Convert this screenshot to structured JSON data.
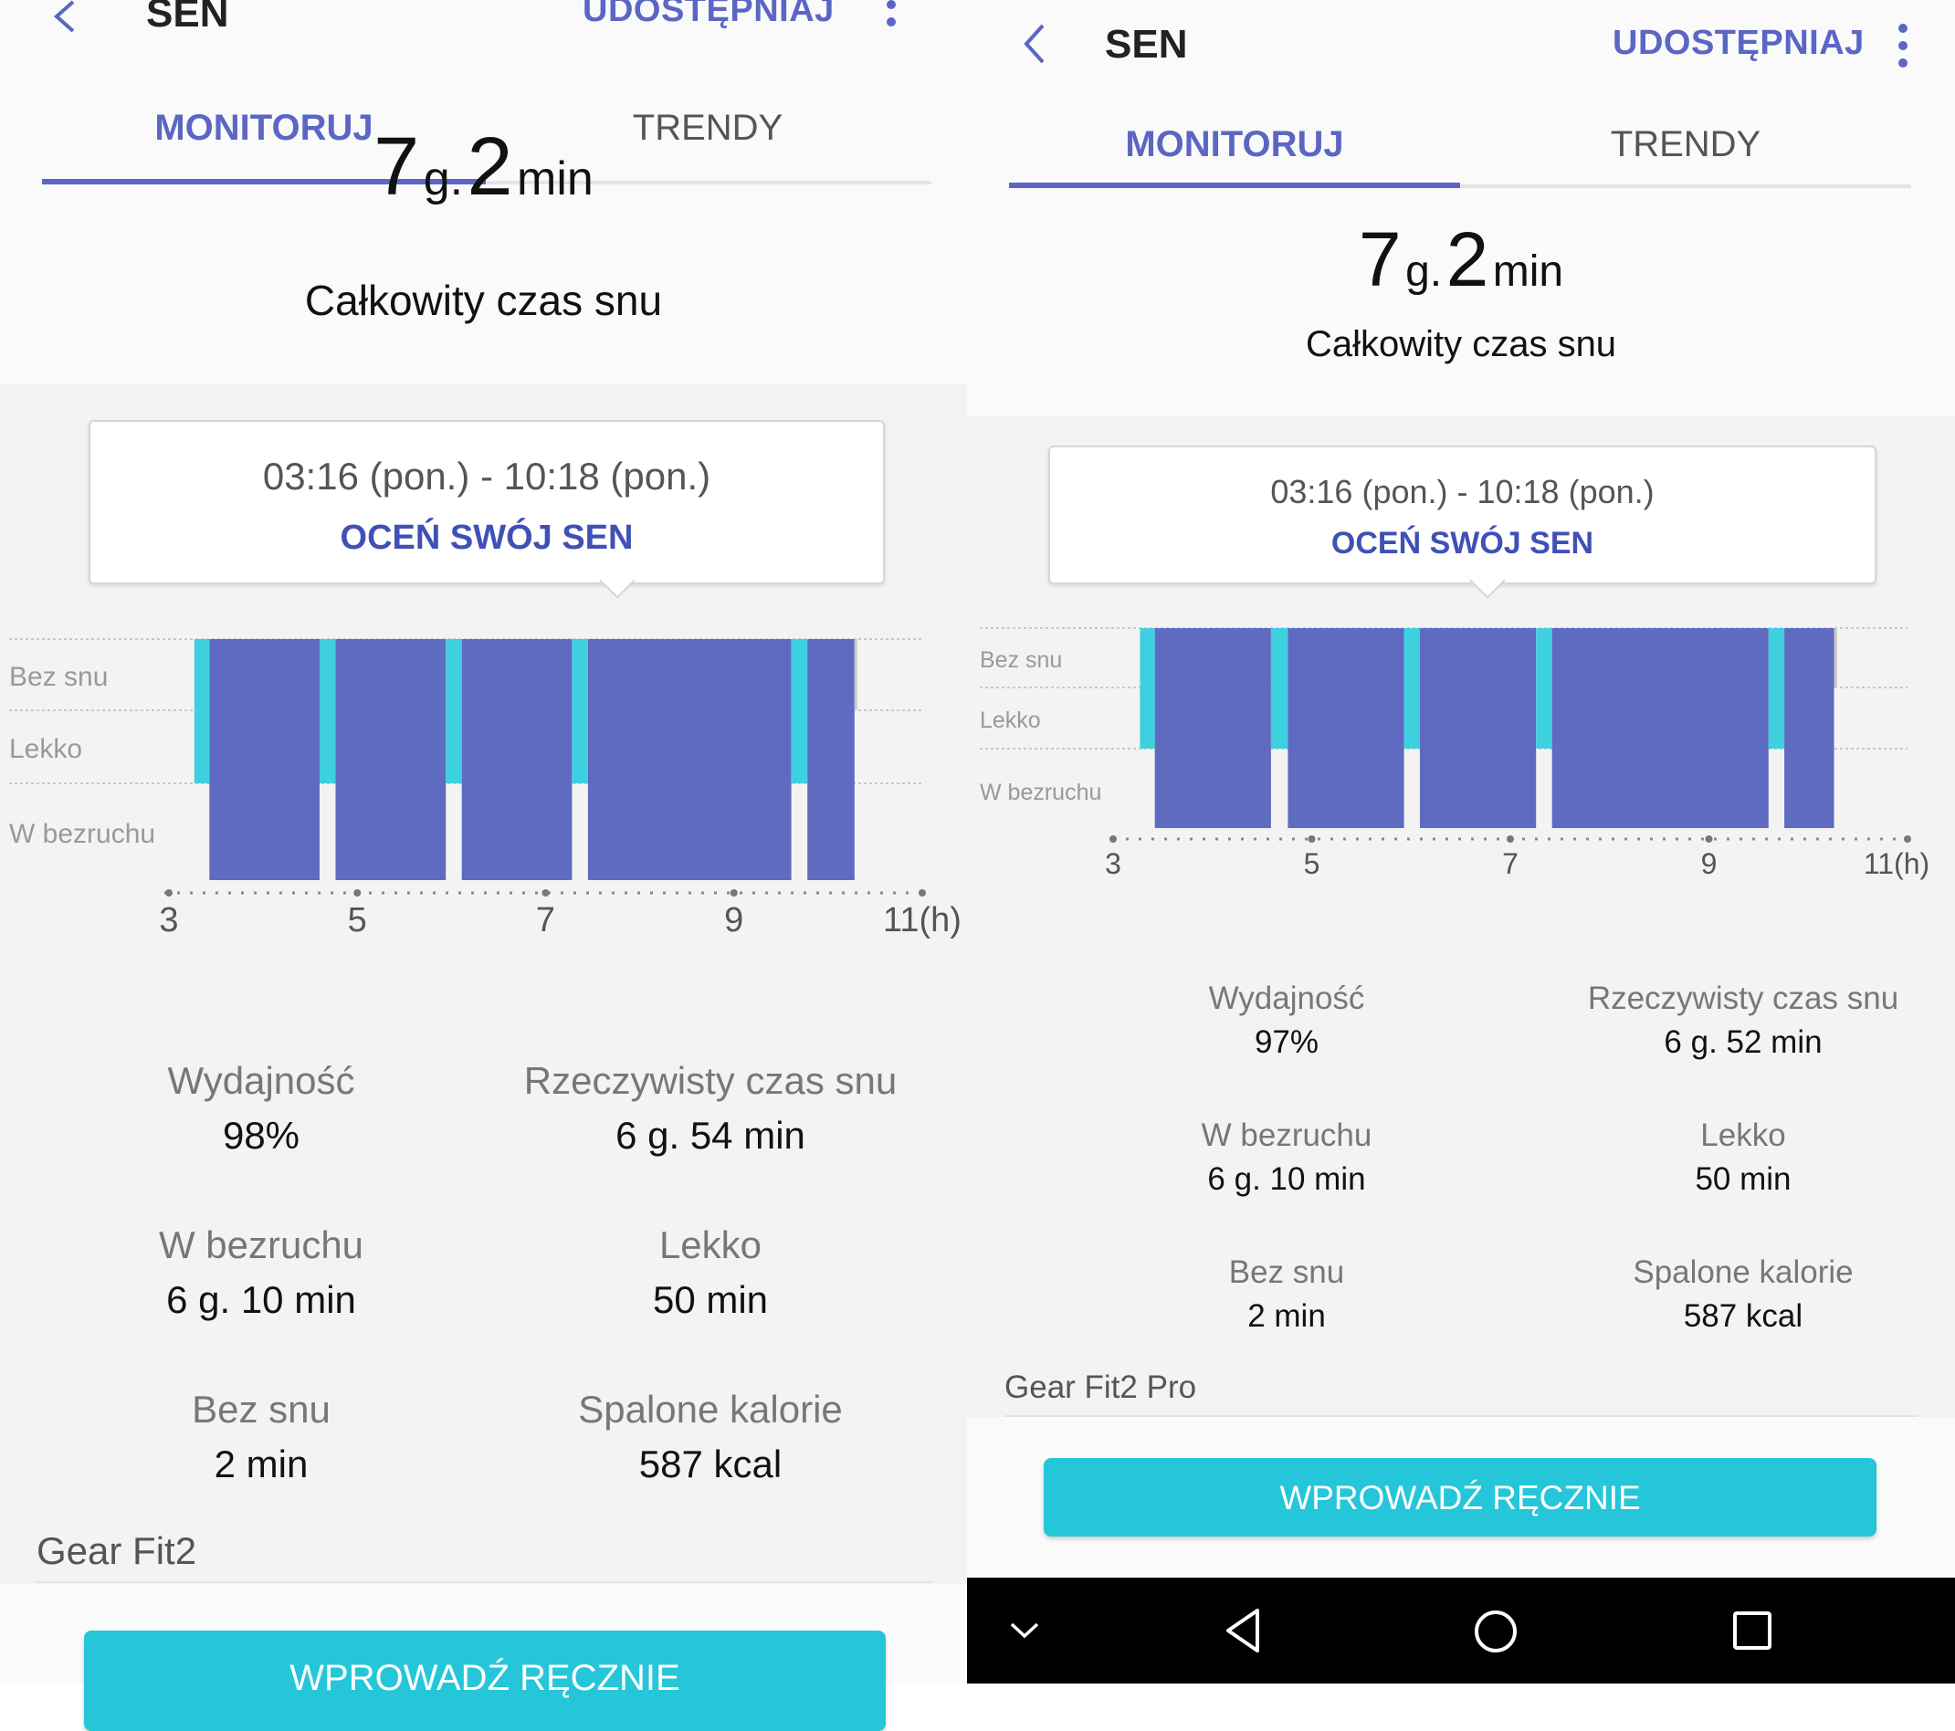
{
  "colors": {
    "accent": "#5b66c4",
    "deep": "#5e6bc1",
    "light": "#3fd0e0",
    "cta": "#26c6da"
  },
  "icons": {
    "back": "chevron-left-icon",
    "more": "more-vert-icon",
    "nav_back": "triangle-back-icon",
    "nav_home": "circle-home-icon",
    "nav_recent": "square-recents-icon",
    "nav_down": "chevron-down-icon"
  },
  "left": {
    "header": {
      "title": "SEN",
      "share": "UDOSTĘPNIAJ"
    },
    "tabs": [
      {
        "label": "MONITORUJ"
      },
      {
        "label": "TRENDY"
      }
    ],
    "summary": {
      "hours": "7",
      "hours_unit": "g.",
      "minutes": "2",
      "minutes_unit": "min",
      "label": "Całkowity czas snu"
    },
    "callout": {
      "range": "03:16 (pon.) - 10:18 (pon.)",
      "rate": "OCEŃ SWÓJ SEN"
    },
    "stats": [
      {
        "label": "Wydajność",
        "value": "98%"
      },
      {
        "label": "Rzeczywisty czas snu",
        "value": "6 g. 54 min"
      },
      {
        "label": "W bezruchu",
        "value": "6 g. 10 min"
      },
      {
        "label": "Lekko",
        "value": "50 min"
      },
      {
        "label": "Bez snu",
        "value": "2 min"
      },
      {
        "label": "Spalone kalorie",
        "value": "587 kcal"
      }
    ],
    "device": "Gear Fit2",
    "cta": "WPROWADŹ RĘCZNIE"
  },
  "right": {
    "header": {
      "title": "SEN",
      "share": "UDOSTĘPNIAJ"
    },
    "tabs": [
      {
        "label": "MONITORUJ"
      },
      {
        "label": "TRENDY"
      }
    ],
    "summary": {
      "hours": "7",
      "hours_unit": "g.",
      "minutes": "2",
      "minutes_unit": "min",
      "label": "Całkowity czas snu"
    },
    "callout": {
      "range": "03:16 (pon.) - 10:18 (pon.)",
      "rate": "OCEŃ SWÓJ SEN"
    },
    "stats": [
      {
        "label": "Wydajność",
        "value": "97%"
      },
      {
        "label": "Rzeczywisty czas snu",
        "value": "6 g. 52 min"
      },
      {
        "label": "W bezruchu",
        "value": "6 g. 10 min"
      },
      {
        "label": "Lekko",
        "value": "50 min"
      },
      {
        "label": "Bez snu",
        "value": "2 min"
      },
      {
        "label": "Spalone kalorie",
        "value": "587 kcal"
      }
    ],
    "device": "Gear Fit2 Pro",
    "cta": "WPROWADŹ RĘCZNIE"
  },
  "chart_data": [
    {
      "type": "bar",
      "x_range": [
        3,
        11
      ],
      "x_unit": "(h)",
      "ticks": [
        3,
        5,
        7,
        9,
        11
      ],
      "tick_labels": [
        "3",
        "5",
        "7",
        "9",
        "11"
      ],
      "stages": [
        "Bez snu",
        "Lekko",
        "W bezruchu"
      ],
      "segments": [
        {
          "start": 3.27,
          "end": 3.43,
          "stage": "Lekko"
        },
        {
          "start": 3.43,
          "end": 4.6,
          "stage": "W bezruchu"
        },
        {
          "start": 4.6,
          "end": 4.77,
          "stage": "Lekko"
        },
        {
          "start": 4.77,
          "end": 5.94,
          "stage": "W bezruchu"
        },
        {
          "start": 5.94,
          "end": 6.11,
          "stage": "Lekko"
        },
        {
          "start": 6.11,
          "end": 7.28,
          "stage": "W bezruchu"
        },
        {
          "start": 7.28,
          "end": 7.45,
          "stage": "Lekko"
        },
        {
          "start": 7.45,
          "end": 9.61,
          "stage": "W bezruchu"
        },
        {
          "start": 9.61,
          "end": 9.78,
          "stage": "Lekko"
        },
        {
          "start": 9.78,
          "end": 10.28,
          "stage": "W bezruchu"
        },
        {
          "start": 10.28,
          "end": 10.3,
          "stage": "Bez snu"
        }
      ]
    },
    {
      "type": "bar",
      "x_range": [
        3,
        11
      ],
      "x_unit": "(h)",
      "ticks": [
        3,
        5,
        7,
        9,
        11
      ],
      "tick_labels": [
        "3",
        "5",
        "7",
        "9",
        "11"
      ],
      "stages": [
        "Bez snu",
        "Lekko",
        "W bezruchu"
      ],
      "segments": [
        {
          "start": 3.27,
          "end": 3.42,
          "stage": "Lekko"
        },
        {
          "start": 3.42,
          "end": 4.59,
          "stage": "W bezruchu"
        },
        {
          "start": 4.59,
          "end": 4.76,
          "stage": "Lekko"
        },
        {
          "start": 4.76,
          "end": 5.93,
          "stage": "W bezruchu"
        },
        {
          "start": 5.93,
          "end": 6.09,
          "stage": "Lekko"
        },
        {
          "start": 6.09,
          "end": 7.26,
          "stage": "W bezruchu"
        },
        {
          "start": 7.26,
          "end": 7.42,
          "stage": "Lekko"
        },
        {
          "start": 7.42,
          "end": 9.6,
          "stage": "W bezruchu"
        },
        {
          "start": 9.6,
          "end": 9.76,
          "stage": "Lekko"
        },
        {
          "start": 9.76,
          "end": 10.26,
          "stage": "W bezruchu"
        },
        {
          "start": 10.26,
          "end": 10.29,
          "stage": "Bez snu"
        }
      ]
    }
  ]
}
